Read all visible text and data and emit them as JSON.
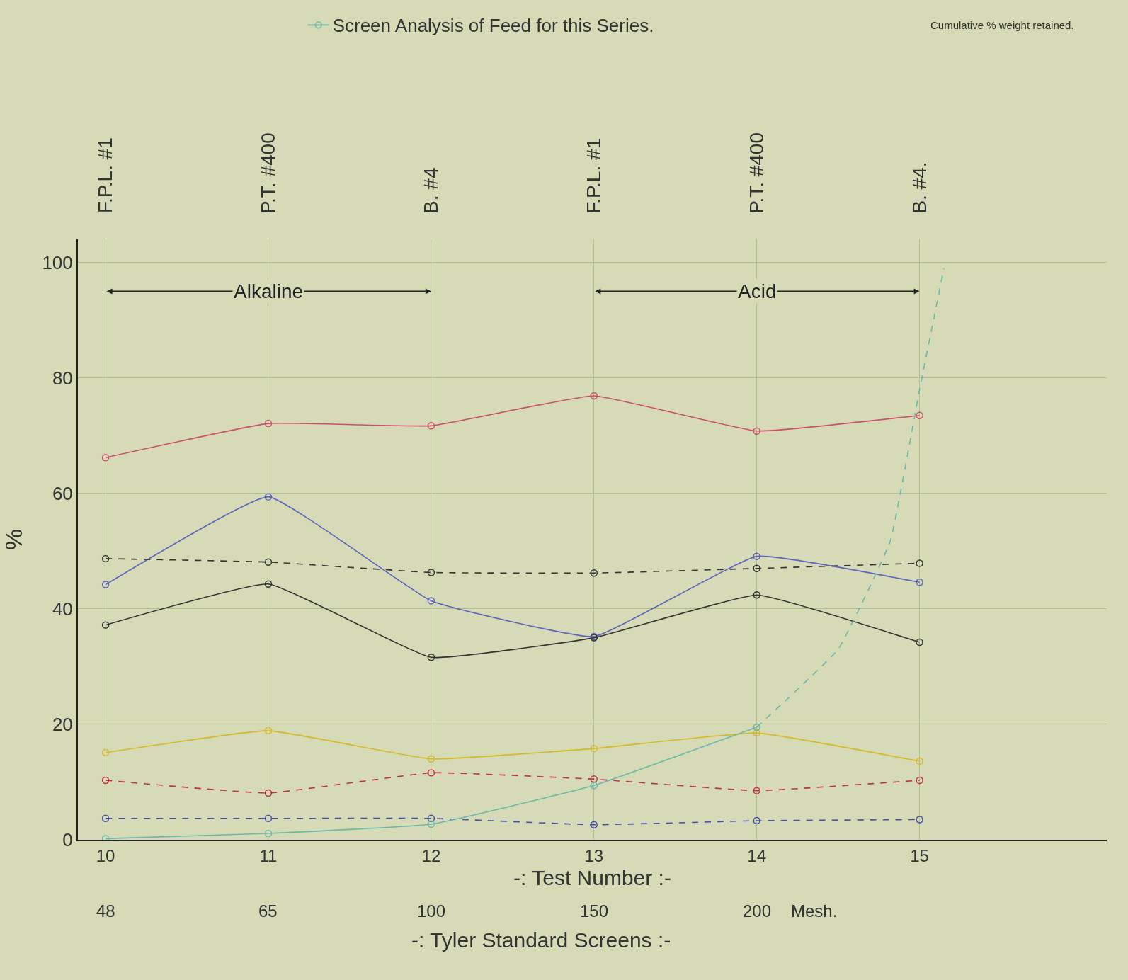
{
  "chart_data": {
    "type": "line",
    "subtitle": "Cumulative % weight retained.",
    "xlabel": "-: Test Number :-",
    "ylabel": "%",
    "x": [
      10,
      11,
      12,
      13,
      14,
      15
    ],
    "xlim": [
      9.83,
      16.15
    ],
    "xticks": [
      10,
      11,
      12,
      13,
      14,
      15
    ],
    "ylim": [
      0,
      104
    ],
    "yticks": [
      0,
      20,
      40,
      60,
      80,
      100
    ],
    "grid": true,
    "marker": "circle",
    "legend": "top",
    "series": [
      {
        "color": "#c8506a",
        "line_style": "solid",
        "values": [
          66.2,
          72.1,
          71.7,
          76.9,
          70.8,
          73.5
        ]
      },
      {
        "color": "#5a66b8",
        "line_style": "solid",
        "values": [
          44.2,
          59.4,
          41.4,
          35.2,
          49.1,
          44.6
        ]
      },
      {
        "color": "#333333",
        "line_style": "dashed",
        "values": [
          48.7,
          48.1,
          46.3,
          46.2,
          47.0,
          47.9
        ]
      },
      {
        "color": "#333333",
        "line_style": "solid",
        "values": [
          37.2,
          44.3,
          31.6,
          35.0,
          42.4,
          34.2
        ]
      },
      {
        "color": "#d8b828",
        "line_style": "solid",
        "values": [
          15.1,
          18.9,
          14.0,
          15.8,
          18.5,
          13.6
        ]
      },
      {
        "color": "#c03048",
        "line_style": "dashed",
        "values": [
          10.3,
          8.1,
          11.6,
          10.5,
          8.5,
          10.3
        ]
      },
      {
        "color": "#4050a8",
        "line_style": "dashed",
        "values": [
          3.7,
          3.7,
          3.7,
          2.6,
          3.3,
          3.5
        ]
      },
      {
        "name": "Screen Analysis of Feed for this Series.",
        "color": "#6cb8a8",
        "line_style": "solid",
        "x": [
          10,
          11,
          12,
          13,
          14
        ],
        "values": [
          0.2,
          1.1,
          2.7,
          9.4,
          19.5
        ]
      },
      {
        "color": "#6cb8a8",
        "line_style": "dashed",
        "marker": "none",
        "x": [
          14,
          14.5,
          14.82,
          15.0,
          15.15
        ],
        "values": [
          19.5,
          33,
          51.7,
          78,
          99
        ]
      }
    ],
    "annotations": [
      "F.P.L. #1",
      "P.T. #400",
      "B. #4",
      "F.P.L. #1",
      "P.T. #400",
      "B. #4.",
      "Alkaline",
      "Acid",
      "48",
      "65",
      "100",
      "150",
      "200",
      "Mesh.",
      "-: Tyler Standard Screens :-"
    ]
  }
}
